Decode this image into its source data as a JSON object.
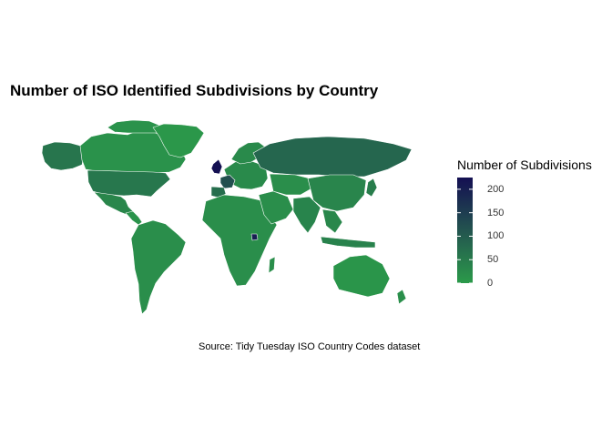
{
  "title": "Number of ISO Identified Subdivisions by Country",
  "caption": "Source: Tidy Tuesday ISO Country Codes dataset",
  "legend": {
    "title": "Number of Subdivisions",
    "ticks": [
      "0",
      "50",
      "100",
      "150",
      "200"
    ],
    "tick_values": [
      0,
      50,
      100,
      150,
      200
    ],
    "range": [
      0,
      225
    ],
    "colors": {
      "low": "#2b9a4a",
      "mid": "#23544f",
      "high": "#140f52"
    }
  },
  "map_data": {
    "type": "choropleth",
    "variable": "Number of Subdivisions",
    "regions": [
      {
        "name": "Canada",
        "value": 13
      },
      {
        "name": "Alaska",
        "value": 60
      },
      {
        "name": "Greenland",
        "value": 5
      },
      {
        "name": "USA",
        "value": 57
      },
      {
        "name": "Mexico",
        "value": 32
      },
      {
        "name": "Central America",
        "value": 12
      },
      {
        "name": "South America",
        "value": 20
      },
      {
        "name": "Europe",
        "value": 25
      },
      {
        "name": "United Kingdom",
        "value": 224
      },
      {
        "name": "France",
        "value": 120
      },
      {
        "name": "Spain",
        "value": 70
      },
      {
        "name": "Africa",
        "value": 20
      },
      {
        "name": "Uganda",
        "value": 200
      },
      {
        "name": "Middle East",
        "value": 20
      },
      {
        "name": "Russia",
        "value": 83
      },
      {
        "name": "Central Asia",
        "value": 20
      },
      {
        "name": "India",
        "value": 36
      },
      {
        "name": "China",
        "value": 34
      },
      {
        "name": "Southeast Asia",
        "value": 30
      },
      {
        "name": "Indonesia",
        "value": 38
      },
      {
        "name": "Japan",
        "value": 47
      },
      {
        "name": "Australia",
        "value": 8
      },
      {
        "name": "New Zealand",
        "value": 17
      }
    ]
  }
}
